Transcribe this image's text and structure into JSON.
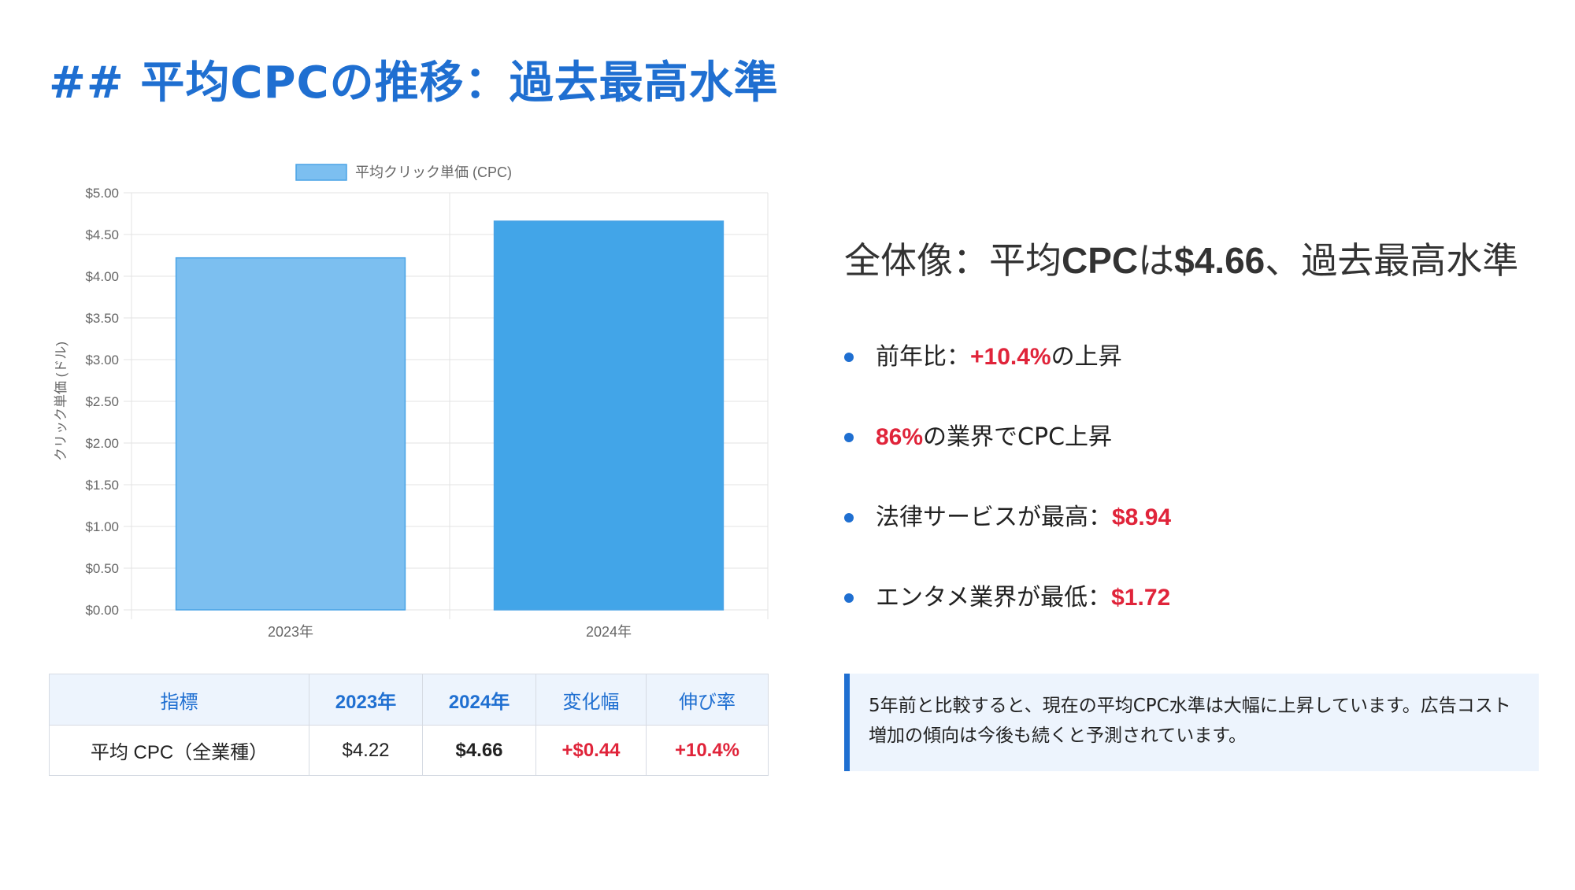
{
  "title": "## 平均CPCの推移：過去最高水準",
  "chart_data": {
    "type": "bar",
    "categories": [
      "2023年",
      "2024年"
    ],
    "series": [
      {
        "name": "平均クリック単価 (CPC)",
        "values": [
          4.22,
          4.66
        ],
        "colors": [
          "#7cbff0",
          "#42a5e8"
        ]
      }
    ],
    "ylabel": "クリック単価 (ドル)",
    "xlabel": "",
    "ylim": [
      0,
      5
    ],
    "yticks": [
      "$0.00",
      "$0.50",
      "$1.00",
      "$1.50",
      "$2.00",
      "$2.50",
      "$3.00",
      "$3.50",
      "$4.00",
      "$4.50",
      "$5.00"
    ],
    "grid": true,
    "legend_position": "top"
  },
  "table": {
    "headers": [
      "指標",
      "2023年",
      "2024年",
      "変化幅",
      "伸び率"
    ],
    "row": [
      "平均 CPC（全業種）",
      "$4.22",
      "$4.66",
      "+$0.44",
      "+10.4%"
    ]
  },
  "summary": {
    "heading_pre": "全体像：平均",
    "heading_cpc": "CPC",
    "heading_mid": "は",
    "heading_value": "$4.66",
    "heading_post": "、過去最高水準",
    "bullets": [
      {
        "pre": "前年比：",
        "highlight": "+10.4%",
        "post": "の上昇"
      },
      {
        "pre": "",
        "highlight": "86%",
        "post": "の業界でCPC上昇"
      },
      {
        "pre": "法律サービスが最高：",
        "highlight": "$8.94",
        "post": ""
      },
      {
        "pre": "エンタメ業界が最低：",
        "highlight": "$1.72",
        "post": ""
      }
    ]
  },
  "note": "5年前と比較すると、現在の平均CPC水準は大幅に上昇しています。広告コスト増加の傾向は今後も続くと予測されています。",
  "colors": {
    "accent": "#1f6fd1",
    "highlight_red": "#e0243a",
    "note_bg": "#edf4fd"
  }
}
